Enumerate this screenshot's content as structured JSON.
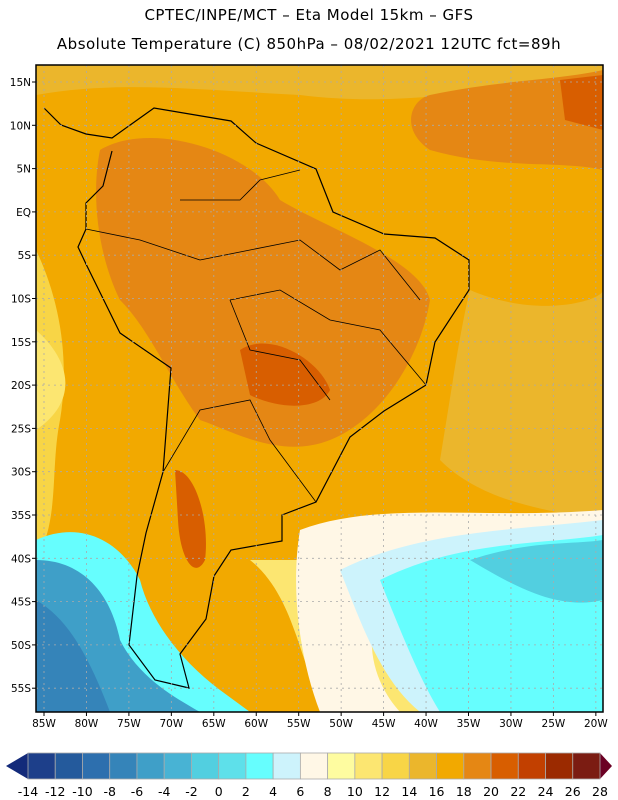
{
  "title_line1": "CPTEC/INPE/MCT –  Eta Model 15km – GFS",
  "title_line2": "Absolute Temperature (C) 850hPa – 08/02/2021 12UTC fct=89h",
  "lat_labels": [
    "15N",
    "10N",
    "5N",
    "EQ",
    "5S",
    "10S",
    "15S",
    "20S",
    "25S",
    "30S",
    "35S",
    "40S",
    "45S",
    "50S",
    "55S"
  ],
  "lon_labels": [
    "85W",
    "80W",
    "75W",
    "70W",
    "65W",
    "60W",
    "55W",
    "50W",
    "45W",
    "40W",
    "35W",
    "30W",
    "25W",
    "20W"
  ],
  "colorbar": {
    "labels": [
      "-14",
      "-12",
      "-10",
      "-8",
      "-6",
      "-4",
      "-2",
      "0",
      "2",
      "4",
      "6",
      "8",
      "10",
      "12",
      "14",
      "16",
      "18",
      "20",
      "22",
      "24",
      "26",
      "28"
    ],
    "colors": [
      "#1d3f8a",
      "#245a9c",
      "#2d6fae",
      "#3584b9",
      "#3f9fc8",
      "#48b3d4",
      "#52cfe0",
      "#5ee0ea",
      "#66fefe",
      "#cdf3fc",
      "#fff7e6",
      "#fefca0",
      "#fce671",
      "#f8d546",
      "#ebb62c",
      "#f2a900",
      "#e58714",
      "#d85e00",
      "#c24000",
      "#9b2a00",
      "#7b1c12"
    ],
    "under_color": "#132a7a",
    "over_color": "#6b0024"
  }
}
